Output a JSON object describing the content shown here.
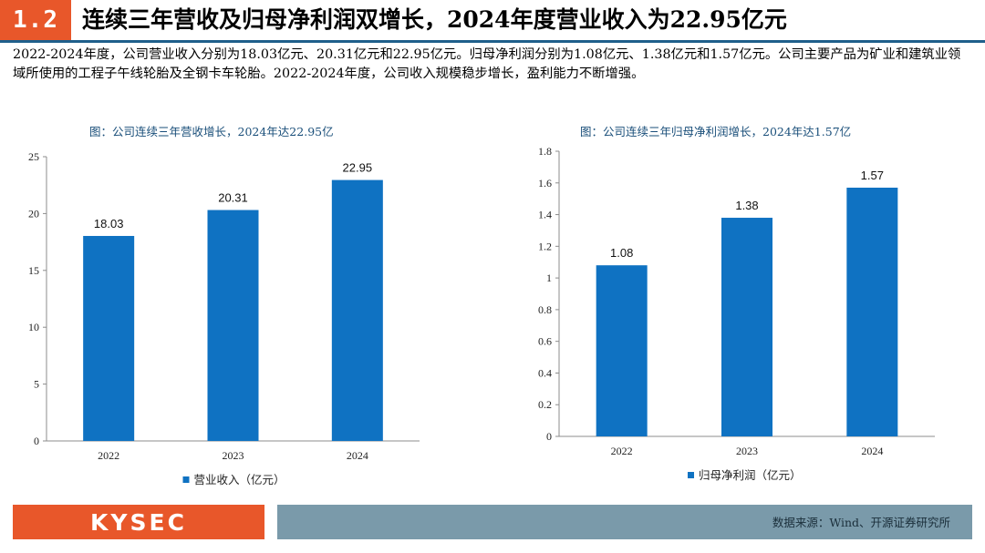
{
  "header": {
    "section_number": "1.2",
    "title": "连续三年营收及归母净利润双增长，2024年度营业收入为22.95亿元"
  },
  "intro": {
    "text": "2022-2024年度，公司营业收入分别为18.03亿元、20.31亿元和22.95亿元。归母净利润分别为1.08亿元、1.38亿元和1.57亿元。公司主要产品为矿业和建筑业领域所使用的工程子午线轮胎及全钢卡车轮胎。2022-2024年度，公司收入规模稳步增长，盈利能力不断增强。"
  },
  "colors": {
    "bar": "#0f72c2",
    "accent": "#e8572a",
    "footer_bar": "#7a9aaa",
    "rule": "#1f5f8b"
  },
  "chart_data": [
    {
      "type": "bar",
      "caption": "图：公司连续三年营收增长，2024年达22.95亿",
      "categories": [
        "2022",
        "2023",
        "2024"
      ],
      "values": [
        18.03,
        20.31,
        22.95
      ],
      "value_labels": [
        "18.03",
        "20.31",
        "22.95"
      ],
      "ylim": [
        0,
        25
      ],
      "yticks": [
        0,
        5,
        10,
        15,
        20,
        25
      ],
      "ytick_labels": [
        "0",
        "5",
        "10",
        "15",
        "20",
        "25"
      ],
      "legend": "营业收入（亿元）",
      "legend_position": "bottom",
      "grid": false
    },
    {
      "type": "bar",
      "caption": "图：公司连续三年归母净利润增长，2024年达1.57亿",
      "categories": [
        "2022",
        "2023",
        "2024"
      ],
      "values": [
        1.08,
        1.38,
        1.57
      ],
      "value_labels": [
        "1.08",
        "1.38",
        "1.57"
      ],
      "ylim": [
        0,
        1.8
      ],
      "yticks": [
        0,
        0.2,
        0.4,
        0.6,
        0.8,
        1.0,
        1.2,
        1.4,
        1.6,
        1.8
      ],
      "ytick_labels": [
        "0",
        "0.2",
        "0.4",
        "0.6",
        "0.8",
        "1",
        "1.2",
        "1.4",
        "1.6",
        "1.8"
      ],
      "legend": "归母净利润（亿元）",
      "legend_position": "bottom",
      "grid": false
    }
  ],
  "footer": {
    "logo_text": "KYSEC",
    "source": "数据来源：Wind、开源证券研究所"
  }
}
